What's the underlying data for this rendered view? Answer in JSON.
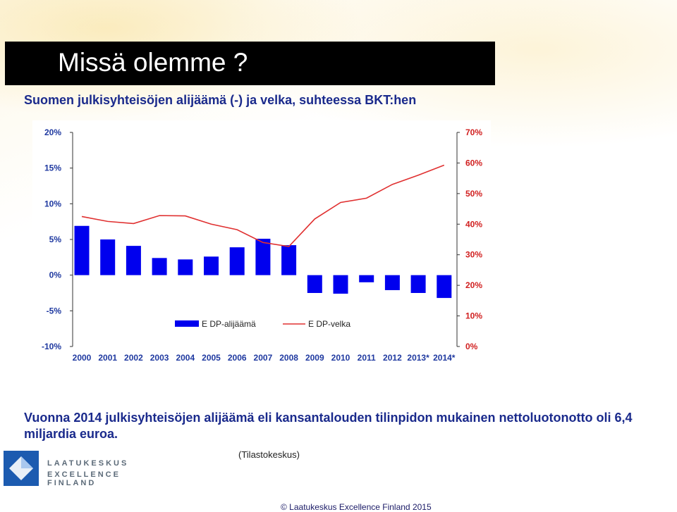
{
  "slide": {
    "title": "Missä olemme ?",
    "subtitle": "Suomen julkisyhteisöjen alijäämä (-) ja velka, suhteessa BKT:hen",
    "body": "Vuonna 2014 julkisyhteisöjen alijäämä eli kansantalouden tilinpidon mukainen nettoluotonotto oli 6,4 miljardia euroa.",
    "source": "(Tilastokeskus)",
    "logo_line1": "LAATUKESKUS",
    "logo_line2": "EXCELLENCE FINLAND",
    "footer": "© Laatukeskus Excellence Finland  2015"
  },
  "colors": {
    "bar": "#0000ee",
    "line": "#e03030",
    "left_axis_text": "#1f39a0",
    "right_axis_text": "#d12020"
  },
  "chart_data": {
    "type": "bar",
    "categories": [
      "2000",
      "2001",
      "2002",
      "2003",
      "2004",
      "2005",
      "2006",
      "2007",
      "2008",
      "2009",
      "2010",
      "2011",
      "2012",
      "2013*",
      "2014*"
    ],
    "series": [
      {
        "name": "EDP-alijäämä",
        "type": "bar",
        "axis": "left",
        "values": [
          6.9,
          5.0,
          4.1,
          2.4,
          2.2,
          2.6,
          3.9,
          5.1,
          4.2,
          -2.5,
          -2.6,
          -1.0,
          -2.1,
          -2.5,
          -3.2
        ]
      },
      {
        "name": "EDP-velka",
        "type": "line",
        "axis": "right",
        "values": [
          42.5,
          40.9,
          40.2,
          42.8,
          42.7,
          40.0,
          38.2,
          34.0,
          32.7,
          41.7,
          47.1,
          48.5,
          53.0,
          56.0,
          59.3
        ]
      }
    ],
    "left_axis": {
      "ticks": [
        "20%",
        "15%",
        "10%",
        "5%",
        "0%",
        "-5%",
        "-10%"
      ],
      "ylim": [
        -10,
        20
      ]
    },
    "right_axis": {
      "ticks": [
        "70%",
        "60%",
        "50%",
        "40%",
        "30%",
        "20%",
        "10%",
        "0%"
      ],
      "ylim": [
        0,
        70
      ]
    },
    "legend": {
      "position": "bottom",
      "bar_label": "E DP-alijäämä",
      "line_label": "E DP-velka"
    },
    "grid": false
  }
}
